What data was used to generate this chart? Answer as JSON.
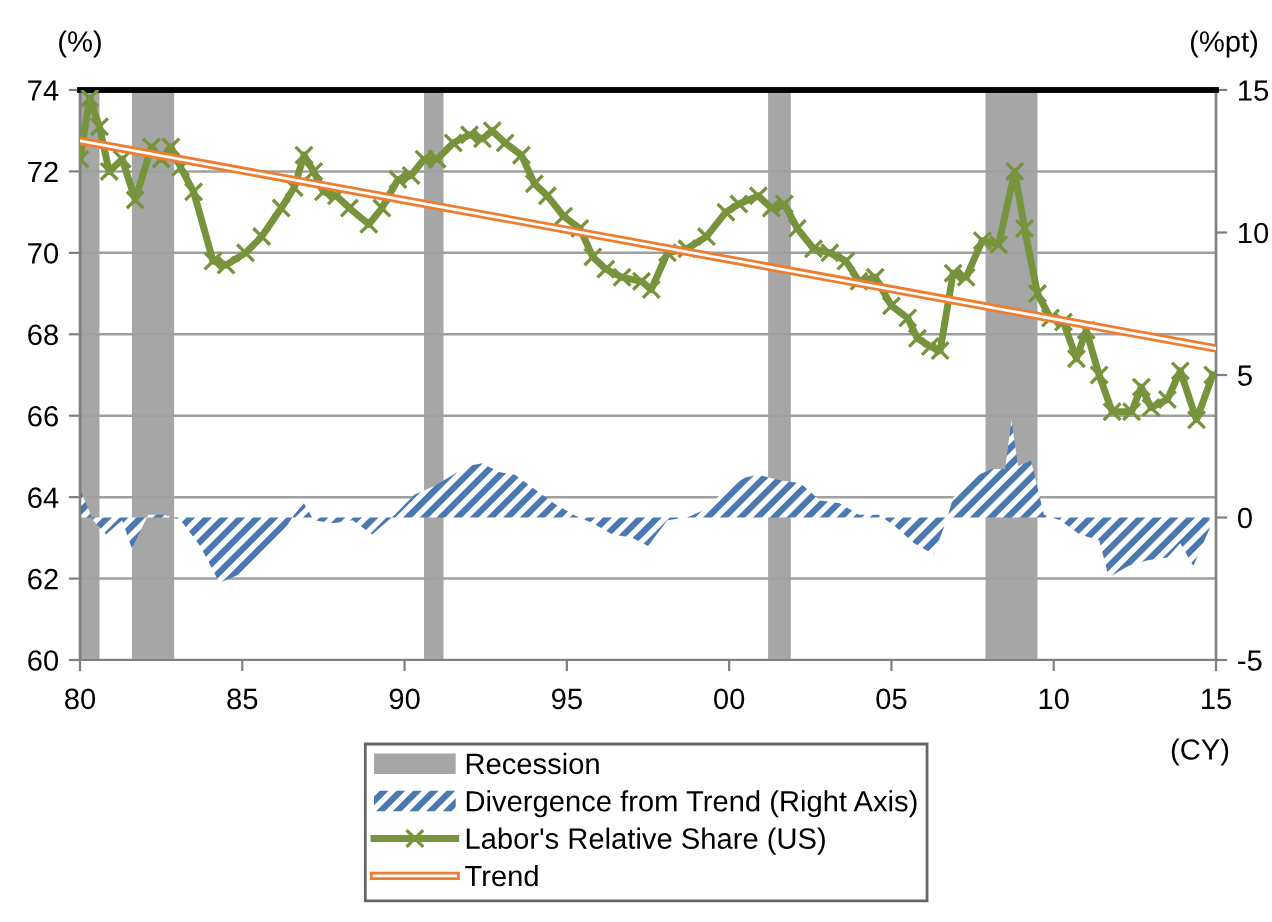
{
  "chart_data": {
    "type": "line",
    "xlabel": "(CY)",
    "ylabel": "(%)",
    "y2label": "(%pt)",
    "xlim": [
      1980,
      2015
    ],
    "xticks": [
      {
        "value": 1980,
        "label": "80"
      },
      {
        "value": 1985,
        "label": "85"
      },
      {
        "value": 1990,
        "label": "90"
      },
      {
        "value": 1995,
        "label": "95"
      },
      {
        "value": 2000,
        "label": "00"
      },
      {
        "value": 2005,
        "label": "05"
      },
      {
        "value": 2010,
        "label": "10"
      },
      {
        "value": 2015,
        "label": "15"
      }
    ],
    "ylim": [
      60,
      74
    ],
    "yticks": [
      60,
      62,
      64,
      66,
      68,
      70,
      72,
      74
    ],
    "y2lim": [
      -5,
      15
    ],
    "y2ticks": [
      -5,
      0,
      5,
      10,
      15
    ],
    "grid": "y",
    "legend": "bottom",
    "bands": [
      {
        "axis": "x",
        "from": 1980.0,
        "to": 1980.6,
        "label": "Recession",
        "color": "#a6a6a6"
      },
      {
        "axis": "x",
        "from": 1981.6,
        "to": 1982.9,
        "color": "#a6a6a6"
      },
      {
        "axis": "x",
        "from": 1990.6,
        "to": 1991.2,
        "color": "#a6a6a6"
      },
      {
        "axis": "x",
        "from": 2001.2,
        "to": 2001.9,
        "color": "#a6a6a6"
      },
      {
        "axis": "x",
        "from": 2007.9,
        "to": 2009.5,
        "color": "#a6a6a6"
      }
    ],
    "series": [
      {
        "name": "Divergence from Trend (Right Axis)",
        "type": "area",
        "axis": "y2",
        "color": "#4a78b0",
        "x": [
          1980.0,
          1980.4,
          1980.8,
          1981.3,
          1981.6,
          1982.1,
          1982.6,
          1983.1,
          1983.7,
          1984.3,
          1984.9,
          1985.6,
          1986.2,
          1986.6,
          1986.9,
          1987.2,
          1987.8,
          1988.4,
          1989.0,
          1989.7,
          1990.3,
          1990.9,
          1991.5,
          1991.9,
          1992.4,
          1992.9,
          1993.4,
          1994.0,
          1994.6,
          1995.2,
          1995.8,
          1996.4,
          1997.0,
          1997.5,
          1998.1,
          1998.7,
          1999.3,
          1999.9,
          2000.5,
          2000.9,
          2001.6,
          2002.2,
          2002.8,
          2003.4,
          2004.0,
          2004.6,
          2005.1,
          2005.7,
          2006.3,
          2006.7,
          2006.9,
          2007.5,
          2008.1,
          2008.5,
          2008.7,
          2008.9,
          2009.3,
          2009.7,
          2010.2,
          2010.8,
          2011.4,
          2011.7,
          2012.3,
          2012.9,
          2013.5,
          2013.9,
          2014.3,
          2014.8
        ],
        "values": [
          1.0,
          -0.1,
          -0.6,
          -0.1,
          -1.1,
          0.1,
          0.1,
          -0.1,
          -1.0,
          -2.3,
          -2.0,
          -1.3,
          -0.6,
          0.1,
          0.5,
          -0.1,
          -0.2,
          -0.1,
          -0.6,
          0.1,
          0.8,
          1.1,
          1.5,
          1.8,
          1.9,
          1.6,
          1.5,
          1.0,
          0.5,
          0.1,
          -0.2,
          -0.6,
          -0.7,
          -1.0,
          -0.1,
          0.0,
          0.3,
          1.0,
          1.4,
          1.5,
          1.3,
          1.2,
          0.6,
          0.5,
          0.1,
          0.1,
          -0.3,
          -0.9,
          -1.3,
          -0.1,
          0.7,
          1.4,
          1.7,
          1.7,
          3.4,
          1.8,
          2.0,
          0.1,
          -0.1,
          -0.6,
          -0.8,
          -2.1,
          -1.7,
          -1.5,
          -1.4,
          -0.9,
          -1.7,
          -0.4
        ]
      },
      {
        "name": "Labor's Relative Share (US)",
        "color": "#77933c",
        "marker": "cross",
        "line_style": "solid",
        "x": [
          1980.0,
          1980.3,
          1980.6,
          1980.9,
          1981.3,
          1981.7,
          1982.2,
          1982.5,
          1982.8,
          1983.1,
          1983.5,
          1984.1,
          1984.5,
          1985.1,
          1985.6,
          1986.2,
          1986.6,
          1986.9,
          1987.2,
          1987.5,
          1987.9,
          1988.3,
          1988.9,
          1989.3,
          1989.8,
          1990.2,
          1990.6,
          1991.0,
          1991.5,
          1992.0,
          1992.4,
          1992.7,
          1993.1,
          1993.6,
          1994.0,
          1994.4,
          1994.9,
          1995.4,
          1995.8,
          1996.2,
          1996.7,
          1997.3,
          1997.6,
          1998.1,
          1998.7,
          1999.3,
          1999.9,
          2000.3,
          2000.9,
          2001.3,
          2001.7,
          2002.1,
          2002.6,
          2003.1,
          2003.6,
          2004.0,
          2004.5,
          2005.0,
          2005.5,
          2005.8,
          2006.2,
          2006.5,
          2006.9,
          2007.3,
          2007.8,
          2008.3,
          2008.8,
          2009.1,
          2009.5,
          2009.9,
          2010.3,
          2010.7,
          2011.0,
          2011.4,
          2011.8,
          2012.4,
          2012.7,
          2013.0,
          2013.5,
          2013.9,
          2014.4,
          2014.9
        ],
        "values": [
          72.3,
          73.8,
          73.1,
          72.0,
          72.3,
          71.3,
          72.6,
          72.3,
          72.6,
          72.1,
          71.5,
          69.8,
          69.7,
          70.0,
          70.4,
          71.1,
          71.6,
          72.4,
          72.0,
          71.5,
          71.4,
          71.1,
          70.7,
          71.1,
          71.8,
          71.9,
          72.3,
          72.3,
          72.7,
          72.9,
          72.8,
          73.0,
          72.7,
          72.4,
          71.7,
          71.4,
          70.9,
          70.6,
          69.9,
          69.6,
          69.4,
          69.3,
          69.1,
          70.0,
          70.1,
          70.4,
          71.0,
          71.2,
          71.4,
          71.1,
          71.2,
          70.6,
          70.1,
          70.0,
          69.8,
          69.3,
          69.4,
          68.7,
          68.4,
          67.9,
          67.7,
          67.6,
          69.5,
          69.4,
          70.3,
          70.2,
          72.0,
          70.6,
          69.0,
          68.4,
          68.3,
          67.4,
          68.1,
          67.0,
          66.1,
          66.1,
          66.7,
          66.2,
          66.4,
          67.1,
          65.9,
          67.0
        ]
      },
      {
        "name": "Trend",
        "color": "#ed7d31",
        "marker": "none",
        "line_style": "solid",
        "x": [
          1980,
          2015
        ],
        "values": [
          72.75,
          67.65
        ]
      }
    ]
  }
}
